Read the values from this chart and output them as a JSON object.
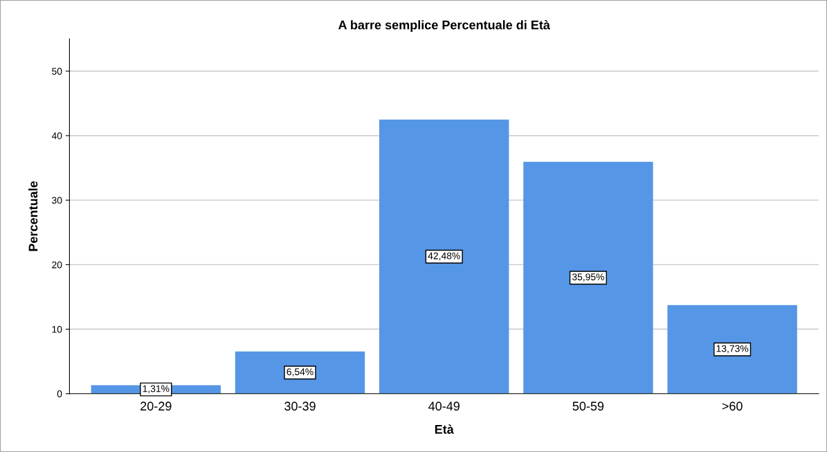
{
  "chart_data": {
    "type": "bar",
    "title": "A barre semplice Percentuale di Età",
    "xlabel": "Età",
    "ylabel": "Percentuale",
    "categories": [
      "20-29",
      "30-39",
      "40-49",
      "50-59",
      ">60"
    ],
    "values": [
      1.31,
      6.54,
      42.48,
      35.95,
      13.73
    ],
    "value_labels": [
      "1,31%",
      "6,54%",
      "42,48%",
      "35,95%",
      "13,73%"
    ],
    "color": "#5596e6",
    "ylim": [
      0,
      55
    ],
    "yticks": [
      0,
      10,
      20,
      30,
      40,
      50
    ],
    "grid": "y"
  }
}
